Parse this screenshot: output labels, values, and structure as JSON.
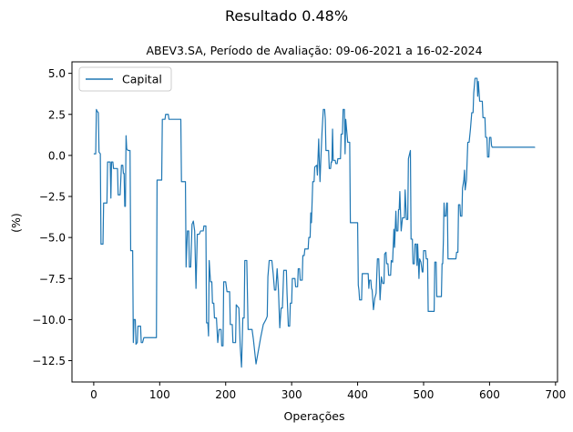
{
  "chart_data": {
    "type": "line",
    "suptitle": "Resultado 0.48%",
    "title": "ABEV3.SA, Período de Avaliação: 09-06-2021 a 16-02-2024",
    "xlabel": "Operações",
    "ylabel": "(%)",
    "xlim": [
      -33,
      703
    ],
    "ylim": [
      -13.8,
      5.7
    ],
    "xticks": [
      0,
      100,
      200,
      300,
      400,
      500,
      600,
      700
    ],
    "xtick_labels": [
      "0",
      "100",
      "200",
      "300",
      "400",
      "500",
      "600",
      "700"
    ],
    "yticks": [
      5.0,
      2.5,
      0.0,
      -2.5,
      -5.0,
      -7.5,
      -10.0,
      -12.5
    ],
    "ytick_labels": [
      "5.0",
      "2.5",
      "0.0",
      "−2.5",
      "−5.0",
      "−7.5",
      "−10.0",
      "−12.5"
    ],
    "grid": false,
    "legend_position": "upper-left",
    "series": [
      {
        "name": "Capital",
        "color": "#1f77b4",
        "points": [
          [
            0,
            0.1
          ],
          [
            3,
            0.1
          ],
          [
            4,
            2.8
          ],
          [
            5,
            2.7
          ],
          [
            7,
            2.6
          ],
          [
            8,
            0.2
          ],
          [
            10,
            0.1
          ],
          [
            11,
            -5.4
          ],
          [
            14,
            -5.4
          ],
          [
            15,
            -2.9
          ],
          [
            20,
            -2.9
          ],
          [
            21,
            -0.4
          ],
          [
            25,
            -0.4
          ],
          [
            26,
            -2.6
          ],
          [
            27,
            -0.4
          ],
          [
            29,
            -0.4
          ],
          [
            30,
            -0.8
          ],
          [
            36,
            -0.8
          ],
          [
            37,
            -2.4
          ],
          [
            40,
            -2.4
          ],
          [
            42,
            -0.6
          ],
          [
            44,
            -0.6
          ],
          [
            45,
            -1.1
          ],
          [
            46,
            -1.1
          ],
          [
            47,
            -3.1
          ],
          [
            48,
            -3.1
          ],
          [
            49,
            1.2
          ],
          [
            50,
            0.4
          ],
          [
            52,
            0.3
          ],
          [
            55,
            0.3
          ],
          [
            56,
            -5.8
          ],
          [
            59,
            -5.8
          ],
          [
            60,
            -11.4
          ],
          [
            61,
            -10.0
          ],
          [
            63,
            -10.0
          ],
          [
            64,
            -11.5
          ],
          [
            66,
            -11.4
          ],
          [
            67,
            -10.4
          ],
          [
            71,
            -10.4
          ],
          [
            72,
            -11.4
          ],
          [
            74,
            -11.4
          ],
          [
            76,
            -11.1
          ],
          [
            95,
            -11.1
          ],
          [
            96,
            -1.5
          ],
          [
            103,
            -1.5
          ],
          [
            104,
            2.2
          ],
          [
            108,
            2.2
          ],
          [
            109,
            2.5
          ],
          [
            113,
            2.5
          ],
          [
            114,
            2.2
          ],
          [
            132,
            2.2
          ],
          [
            133,
            -1.6
          ],
          [
            139,
            -1.6
          ],
          [
            140,
            -6.8
          ],
          [
            142,
            -4.6
          ],
          [
            144,
            -4.6
          ],
          [
            145,
            -6.8
          ],
          [
            147,
            -6.8
          ],
          [
            149,
            -4.2
          ],
          [
            151,
            -4.0
          ],
          [
            153,
            -4.6
          ],
          [
            155,
            -8.1
          ],
          [
            157,
            -4.8
          ],
          [
            160,
            -4.8
          ],
          [
            162,
            -4.6
          ],
          [
            166,
            -4.6
          ],
          [
            167,
            -4.3
          ],
          [
            170,
            -4.3
          ],
          [
            171,
            -10.2
          ],
          [
            173,
            -10.2
          ],
          [
            174,
            -11.0
          ],
          [
            175,
            -6.4
          ],
          [
            177,
            -7.7
          ],
          [
            179,
            -7.7
          ],
          [
            180,
            -9.0
          ],
          [
            182,
            -9.0
          ],
          [
            183,
            -9.9
          ],
          [
            186,
            -9.9
          ],
          [
            188,
            -11.4
          ],
          [
            190,
            -10.6
          ],
          [
            193,
            -10.6
          ],
          [
            194,
            -11.6
          ],
          [
            196,
            -11.6
          ],
          [
            197,
            -7.7
          ],
          [
            200,
            -7.7
          ],
          [
            202,
            -8.3
          ],
          [
            206,
            -8.3
          ],
          [
            207,
            -10.3
          ],
          [
            210,
            -10.3
          ],
          [
            211,
            -11.4
          ],
          [
            215,
            -11.4
          ],
          [
            216,
            -9.1
          ],
          [
            220,
            -9.3
          ],
          [
            222,
            -11.6
          ],
          [
            224,
            -12.9
          ],
          [
            226,
            -9.9
          ],
          [
            228,
            -9.9
          ],
          [
            229,
            -6.4
          ],
          [
            232,
            -6.4
          ],
          [
            234,
            -10.6
          ],
          [
            240,
            -10.6
          ],
          [
            242,
            -11.2
          ],
          [
            246,
            -12.7
          ],
          [
            250,
            -11.8
          ],
          [
            253,
            -11.1
          ],
          [
            257,
            -10.3
          ],
          [
            261,
            -10.0
          ],
          [
            263,
            -9.8
          ],
          [
            264,
            -7.4
          ],
          [
            266,
            -6.4
          ],
          [
            270,
            -6.4
          ],
          [
            272,
            -7.2
          ],
          [
            274,
            -8.2
          ],
          [
            276,
            -8.2
          ],
          [
            278,
            -6.9
          ],
          [
            280,
            -8.2
          ],
          [
            282,
            -10.5
          ],
          [
            284,
            -9.3
          ],
          [
            286,
            -9.3
          ],
          [
            288,
            -7.0
          ],
          [
            292,
            -7.0
          ],
          [
            293,
            -8.4
          ],
          [
            295,
            -10.4
          ],
          [
            297,
            -10.4
          ],
          [
            298,
            -9.0
          ],
          [
            300,
            -9.0
          ],
          [
            301,
            -7.5
          ],
          [
            305,
            -7.5
          ],
          [
            306,
            -8.0
          ],
          [
            309,
            -8.0
          ],
          [
            310,
            -6.9
          ],
          [
            312,
            -6.9
          ],
          [
            313,
            -7.6
          ],
          [
            316,
            -7.6
          ],
          [
            317,
            -6.1
          ],
          [
            319,
            -6.1
          ],
          [
            320,
            -5.7
          ],
          [
            325,
            -5.7
          ],
          [
            326,
            -5.0
          ],
          [
            328,
            -5.0
          ],
          [
            329,
            -3.5
          ],
          [
            330,
            -4.1
          ],
          [
            332,
            -1.6
          ],
          [
            334,
            -1.6
          ],
          [
            335,
            -0.7
          ],
          [
            338,
            -0.6
          ],
          [
            339,
            -1.2
          ],
          [
            341,
            1.0
          ],
          [
            342,
            -0.4
          ],
          [
            343,
            -1.6
          ],
          [
            344,
            -0.5
          ],
          [
            346,
            1.4
          ],
          [
            348,
            2.8
          ],
          [
            350,
            2.8
          ],
          [
            351,
            2.2
          ],
          [
            352,
            0.3
          ],
          [
            356,
            0.3
          ],
          [
            357,
            -0.8
          ],
          [
            359,
            -0.8
          ],
          [
            360,
            -0.4
          ],
          [
            361,
            -0.4
          ],
          [
            362,
            1.6
          ],
          [
            363,
            -0.3
          ],
          [
            366,
            -0.3
          ],
          [
            367,
            -0.5
          ],
          [
            369,
            -0.5
          ],
          [
            370,
            -0.2
          ],
          [
            374,
            -0.2
          ],
          [
            375,
            1.3
          ],
          [
            377,
            1.3
          ],
          [
            378,
            2.8
          ],
          [
            380,
            2.8
          ],
          [
            381,
            0.1
          ],
          [
            382,
            2.2
          ],
          [
            385,
            0.8
          ],
          [
            388,
            0.8
          ],
          [
            389,
            -4.1
          ],
          [
            400,
            -4.1
          ],
          [
            401,
            -7.9
          ],
          [
            402,
            -8.2
          ],
          [
            403,
            -8.8
          ],
          [
            406,
            -8.8
          ],
          [
            407,
            -7.2
          ],
          [
            416,
            -7.2
          ],
          [
            417,
            -8.1
          ],
          [
            418,
            -7.6
          ],
          [
            420,
            -7.6
          ],
          [
            421,
            -8.1
          ],
          [
            422,
            -8.2
          ],
          [
            423,
            -8.8
          ],
          [
            424,
            -9.4
          ],
          [
            426,
            -8.7
          ],
          [
            428,
            -8.4
          ],
          [
            430,
            -6.3
          ],
          [
            432,
            -6.3
          ],
          [
            434,
            -8.8
          ],
          [
            436,
            -7.4
          ],
          [
            438,
            -7.8
          ],
          [
            440,
            -7.8
          ],
          [
            441,
            -6.0
          ],
          [
            443,
            -5.9
          ],
          [
            444,
            -6.6
          ],
          [
            446,
            -6.6
          ],
          [
            447,
            -7.3
          ],
          [
            450,
            -7.3
          ],
          [
            451,
            -6.4
          ],
          [
            453,
            -6.5
          ],
          [
            455,
            -4.5
          ],
          [
            456,
            -5.6
          ],
          [
            458,
            -3.4
          ],
          [
            459,
            -4.6
          ],
          [
            461,
            -4.6
          ],
          [
            462,
            -3.3
          ],
          [
            463,
            -3.3
          ],
          [
            464,
            -2.2
          ],
          [
            466,
            -4.6
          ],
          [
            468,
            -3.8
          ],
          [
            471,
            -3.8
          ],
          [
            472,
            -2.1
          ],
          [
            474,
            -3.9
          ],
          [
            476,
            -3.9
          ],
          [
            477,
            -0.2
          ],
          [
            480,
            0.3
          ],
          [
            481,
            -5.1
          ],
          [
            483,
            -5.1
          ],
          [
            484,
            -6.6
          ],
          [
            486,
            -6.6
          ],
          [
            487,
            -5.4
          ],
          [
            489,
            -5.4
          ],
          [
            490,
            -6.7
          ],
          [
            491,
            -5.4
          ],
          [
            493,
            -7.5
          ],
          [
            494,
            -6.3
          ],
          [
            496,
            -6.5
          ],
          [
            498,
            -7.1
          ],
          [
            499,
            -7.1
          ],
          [
            500,
            -5.8
          ],
          [
            503,
            -5.8
          ],
          [
            504,
            -6.3
          ],
          [
            506,
            -6.3
          ],
          [
            507,
            -9.5
          ],
          [
            516,
            -9.5
          ],
          [
            517,
            -6.5
          ],
          [
            519,
            -6.5
          ],
          [
            520,
            -8.6
          ],
          [
            527,
            -8.6
          ],
          [
            528,
            -6.6
          ],
          [
            529,
            -6.6
          ],
          [
            530,
            -5.2
          ],
          [
            531,
            -2.9
          ],
          [
            532,
            -3.7
          ],
          [
            534,
            -3.7
          ],
          [
            535,
            -2.9
          ],
          [
            536,
            -2.9
          ],
          [
            537,
            -6.3
          ],
          [
            547,
            -6.3
          ],
          [
            549,
            -6.3
          ],
          [
            550,
            -5.9
          ],
          [
            552,
            -5.9
          ],
          [
            553,
            -3.0
          ],
          [
            555,
            -3.0
          ],
          [
            556,
            -3.7
          ],
          [
            558,
            -3.7
          ],
          [
            559,
            -2.0
          ],
          [
            561,
            -1.5
          ],
          [
            562,
            -0.9
          ],
          [
            563,
            -2.1
          ],
          [
            565,
            -1.5
          ],
          [
            567,
            0.8
          ],
          [
            569,
            0.8
          ],
          [
            571,
            1.6
          ],
          [
            573,
            2.6
          ],
          [
            575,
            2.6
          ],
          [
            576,
            3.8
          ],
          [
            578,
            4.7
          ],
          [
            581,
            4.7
          ],
          [
            582,
            3.6
          ],
          [
            583,
            4.5
          ],
          [
            585,
            3.3
          ],
          [
            589,
            3.3
          ],
          [
            590,
            2.3
          ],
          [
            593,
            2.3
          ],
          [
            594,
            1.1
          ],
          [
            596,
            1.1
          ],
          [
            597,
            -0.1
          ],
          [
            599,
            -0.1
          ],
          [
            600,
            1.1
          ],
          [
            602,
            1.1
          ],
          [
            603,
            0.6
          ],
          [
            604,
            0.5
          ],
          [
            668,
            0.5
          ],
          [
            669,
            0.48
          ]
        ]
      }
    ]
  }
}
